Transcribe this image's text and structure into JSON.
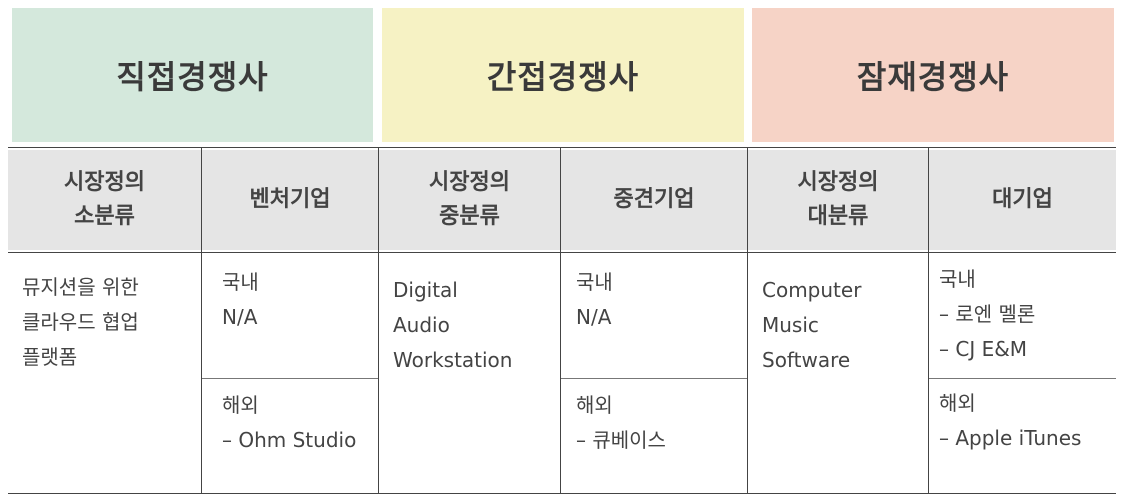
{
  "headers": {
    "direct": {
      "label": "직접경쟁사",
      "color": "#d4e8dc"
    },
    "indirect": {
      "label": "간접경쟁사",
      "color": "#f6f2c4"
    },
    "potential": {
      "label": "잠재경쟁사",
      "color": "#f6d3c6"
    }
  },
  "subheaders": {
    "direct_market": [
      "시장정의",
      "소분류"
    ],
    "direct_company": "벤처기업",
    "indirect_market": [
      "시장정의",
      "중분류"
    ],
    "indirect_company": "중견기업",
    "potential_market": [
      "시장정의",
      "대분류"
    ],
    "potential_company": "대기업"
  },
  "body": {
    "direct_market": [
      "뮤지션을 위한",
      "클라우드 협업",
      "플랫폼"
    ],
    "direct_domestic": [
      "국내",
      "N/A"
    ],
    "direct_overseas": [
      "해외",
      "– Ohm Studio"
    ],
    "indirect_market": [
      "Digital",
      "Audio",
      "Workstation"
    ],
    "indirect_domestic": [
      "국내",
      "N/A"
    ],
    "indirect_overseas": [
      "해외",
      "– 큐베이스"
    ],
    "potential_market": [
      "Computer",
      "Music",
      "Software"
    ],
    "potential_domestic": [
      "국내",
      "– 로엔 멜론",
      "– CJ E&M"
    ],
    "potential_overseas": [
      "해외",
      "– Apple iTunes"
    ]
  }
}
